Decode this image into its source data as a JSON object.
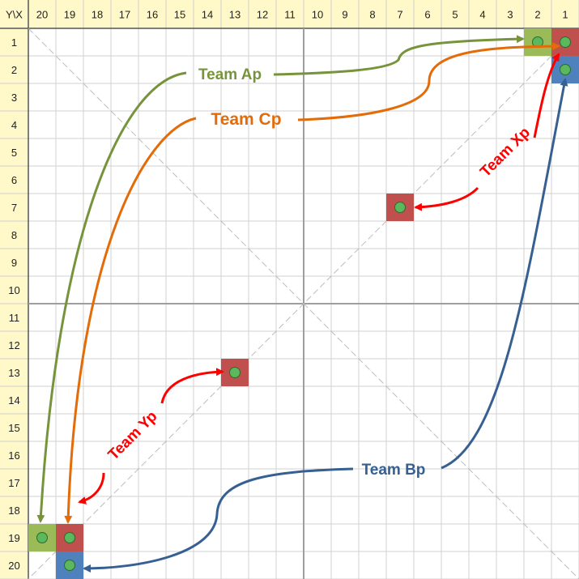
{
  "corner_label": "Y\\X",
  "x_headers": [
    "20",
    "19",
    "18",
    "17",
    "16",
    "15",
    "14",
    "13",
    "12",
    "11",
    "10",
    "9",
    "8",
    "7",
    "6",
    "5",
    "4",
    "3",
    "2",
    "1"
  ],
  "y_headers": [
    "1",
    "2",
    "3",
    "4",
    "5",
    "6",
    "7",
    "8",
    "9",
    "10",
    "11",
    "12",
    "13",
    "14",
    "15",
    "16",
    "17",
    "18",
    "19",
    "20"
  ],
  "colors": {
    "header_bg": "#fff9c9",
    "grid_line": "#d0d0d0",
    "axis_line": "#9e9e9e",
    "diagonal": "#bdbdbd",
    "green_cell": "#9bbb59",
    "red_cell": "#c0504d",
    "blue_cell": "#4f81bd",
    "dot": "#5cb85c",
    "team_a": "#77933c",
    "team_c": "#e36c09",
    "team_b": "#376092",
    "team_xy": "#ff0000"
  },
  "cells": [
    {
      "x": 2,
      "y": 1,
      "color": "green_cell",
      "dot": true
    },
    {
      "x": 1,
      "y": 1,
      "color": "red_cell",
      "dot": true
    },
    {
      "x": 1,
      "y": 2,
      "color": "blue_cell",
      "dot": true
    },
    {
      "x": 7,
      "y": 7,
      "color": "red_cell",
      "dot": true
    },
    {
      "x": 13,
      "y": 13,
      "color": "red_cell",
      "dot": true
    },
    {
      "x": 20,
      "y": 19,
      "color": "green_cell",
      "dot": true
    },
    {
      "x": 19,
      "y": 19,
      "color": "red_cell",
      "dot": true
    },
    {
      "x": 19,
      "y": 20,
      "color": "blue_cell",
      "dot": true
    }
  ],
  "teams": {
    "team_a": "Team Ap",
    "team_c": "Team Cp",
    "team_x": "Team Xp",
    "team_y": "Team Yp",
    "team_b": "Team Bp"
  }
}
